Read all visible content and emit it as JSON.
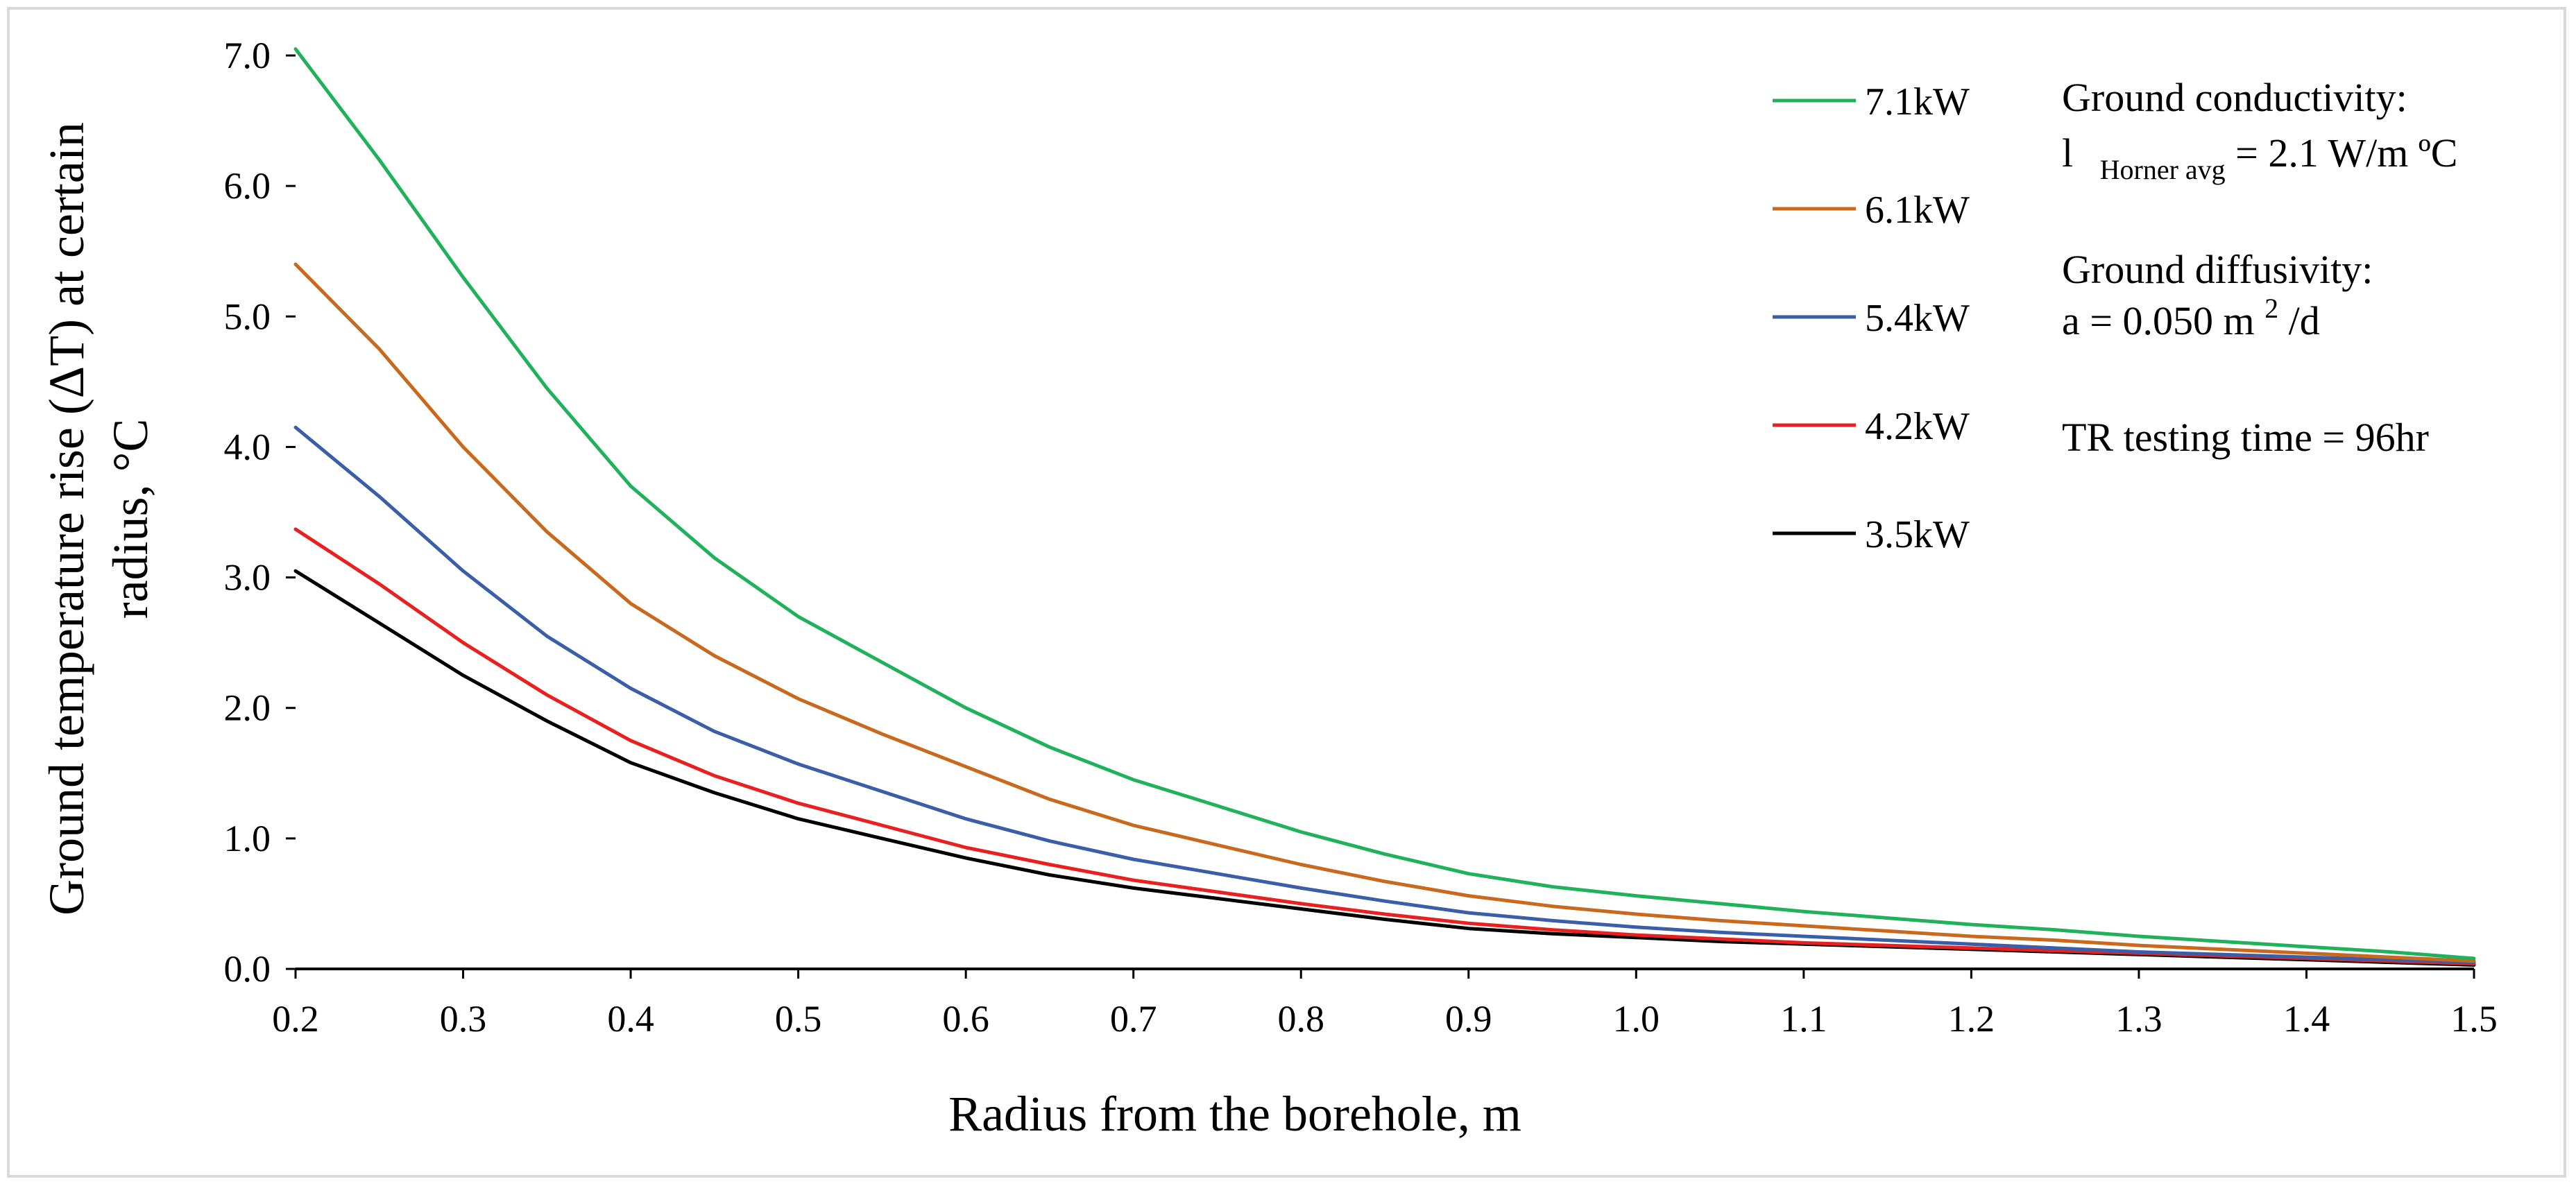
{
  "chart_data": {
    "type": "line",
    "title": "",
    "xlabel": "Radius from the borehole, m",
    "ylabel_line1": "Ground temperature rise (ΔT) at certain",
    "ylabel_line2": "radius, °C",
    "xlim": [
      0.2,
      1.5
    ],
    "ylim": [
      0.0,
      7.0
    ],
    "x_ticks": [
      "0.2",
      "0.3",
      "0.4",
      "0.5",
      "0.6",
      "0.7",
      "0.8",
      "0.9",
      "1.0",
      "1.1",
      "1.2",
      "1.3",
      "1.4",
      "1.5"
    ],
    "y_ticks": [
      "0.0",
      "1.0",
      "2.0",
      "3.0",
      "4.0",
      "5.0",
      "6.0",
      "7.0"
    ],
    "x": [
      0.2,
      0.25,
      0.3,
      0.35,
      0.4,
      0.45,
      0.5,
      0.55,
      0.6,
      0.65,
      0.7,
      0.75,
      0.8,
      0.85,
      0.9,
      0.95,
      1.0,
      1.05,
      1.1,
      1.15,
      1.2,
      1.25,
      1.3,
      1.35,
      1.4,
      1.45,
      1.5
    ],
    "series": [
      {
        "name": "7.1kW",
        "color": "#1fb25a",
        "values": [
          7.05,
          6.2,
          5.3,
          4.45,
          3.7,
          3.15,
          2.7,
          2.35,
          2.0,
          1.7,
          1.45,
          1.25,
          1.05,
          0.88,
          0.73,
          0.63,
          0.56,
          0.5,
          0.44,
          0.39,
          0.34,
          0.3,
          0.25,
          0.21,
          0.17,
          0.13,
          0.08
        ]
      },
      {
        "name": "6.1kW",
        "color": "#c8691e",
        "values": [
          5.4,
          4.75,
          4.0,
          3.35,
          2.8,
          2.4,
          2.07,
          1.8,
          1.55,
          1.3,
          1.1,
          0.95,
          0.8,
          0.67,
          0.56,
          0.48,
          0.42,
          0.37,
          0.33,
          0.29,
          0.25,
          0.22,
          0.18,
          0.15,
          0.12,
          0.09,
          0.06
        ]
      },
      {
        "name": "5.4kW",
        "color": "#3a5ea8",
        "values": [
          4.15,
          3.62,
          3.05,
          2.55,
          2.15,
          1.82,
          1.57,
          1.36,
          1.15,
          0.98,
          0.84,
          0.73,
          0.62,
          0.52,
          0.43,
          0.37,
          0.32,
          0.28,
          0.25,
          0.22,
          0.19,
          0.16,
          0.13,
          0.11,
          0.09,
          0.07,
          0.05
        ]
      },
      {
        "name": "4.2kW",
        "color": "#e82020",
        "values": [
          3.37,
          2.95,
          2.5,
          2.1,
          1.75,
          1.48,
          1.27,
          1.1,
          0.93,
          0.8,
          0.68,
          0.59,
          0.5,
          0.42,
          0.35,
          0.3,
          0.26,
          0.23,
          0.2,
          0.18,
          0.16,
          0.14,
          0.12,
          0.1,
          0.08,
          0.06,
          0.04
        ]
      },
      {
        "name": "3.5kW",
        "color": "#000000",
        "values": [
          3.05,
          2.65,
          2.25,
          1.9,
          1.58,
          1.35,
          1.15,
          1.0,
          0.85,
          0.72,
          0.62,
          0.54,
          0.46,
          0.38,
          0.31,
          0.27,
          0.24,
          0.21,
          0.19,
          0.17,
          0.15,
          0.13,
          0.11,
          0.09,
          0.07,
          0.05,
          0.03
        ]
      }
    ],
    "annotations": {
      "conductivity_title": "Ground conductivity:",
      "conductivity_symbol": "l",
      "conductivity_subscript": "Horner avg",
      "conductivity_value": "= 2.1  W/m ºC",
      "diffusivity_title": "Ground diffusivity:",
      "diffusivity_symbol": "a",
      "diffusivity_value": " = 0.050 m",
      "diffusivity_sup": "2",
      "diffusivity_unit": "/d",
      "testing_time": "TR testing time = 96hr"
    }
  }
}
